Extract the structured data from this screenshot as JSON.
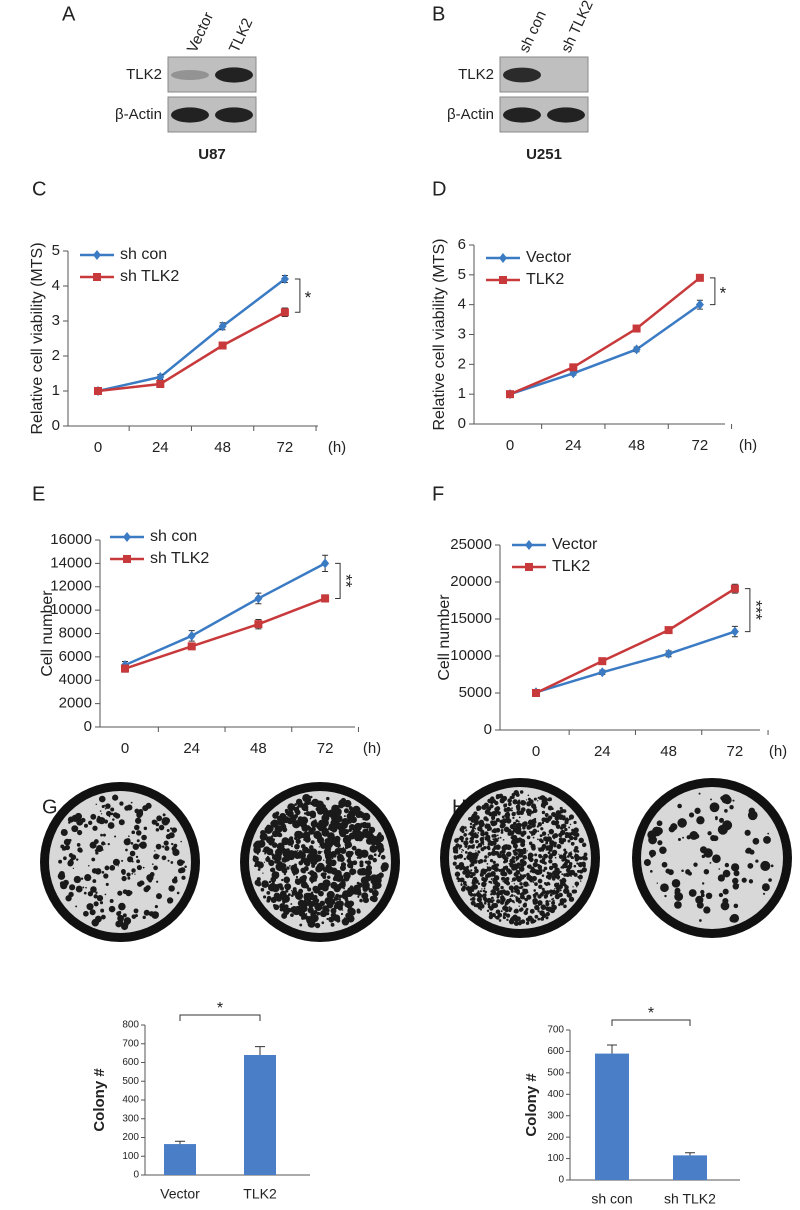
{
  "blots": [
    {
      "panel": "A",
      "lanes": [
        "Vector",
        "TLK2"
      ],
      "rows": [
        "TLK2",
        "β-Actin"
      ],
      "cell_line": "U87"
    },
    {
      "panel": "B",
      "lanes": [
        "sh con",
        "sh TLK2"
      ],
      "rows": [
        "TLK2",
        "β-Actin"
      ],
      "cell_line": "U251"
    }
  ],
  "chart_data": [
    {
      "type": "line",
      "panel": "C",
      "y_label": "Relative cell viability (MTS)",
      "x_unit": "(h)",
      "annotation": "*",
      "categories": [
        "0",
        "24",
        "48",
        "72"
      ],
      "ylim": [
        0,
        5
      ],
      "yticks": [
        0,
        1,
        2,
        3,
        4,
        5
      ],
      "series": [
        {
          "name": "sh con",
          "color": "#3b7bc4",
          "marker": "diamond",
          "values": [
            1,
            1.4,
            2.85,
            4.2
          ],
          "errors": [
            0.05,
            0.07,
            0.1,
            0.1
          ]
        },
        {
          "name": "sh TLK2",
          "color": "#c8393b",
          "marker": "square",
          "values": [
            1,
            1.2,
            2.3,
            3.25
          ],
          "errors": [
            0.05,
            0.05,
            0.06,
            0.12
          ]
        }
      ]
    },
    {
      "type": "line",
      "panel": "D",
      "y_label": "Relative cell viability (MTS)",
      "x_unit": "(h)",
      "annotation": "*",
      "categories": [
        "0",
        "24",
        "48",
        "72"
      ],
      "ylim": [
        0,
        6
      ],
      "yticks": [
        0,
        1,
        2,
        3,
        4,
        5,
        6
      ],
      "series": [
        {
          "name": "Vector",
          "color": "#3b7bc4",
          "marker": "diamond",
          "values": [
            1,
            1.7,
            2.5,
            4.0
          ],
          "errors": [
            0.05,
            0.06,
            0.08,
            0.15
          ]
        },
        {
          "name": "TLK2",
          "color": "#c8393b",
          "marker": "square",
          "values": [
            1,
            1.9,
            3.2,
            4.9
          ],
          "errors": [
            0.05,
            0.07,
            0.1,
            0.1
          ]
        }
      ]
    },
    {
      "type": "line",
      "panel": "E",
      "y_label": "Cell number",
      "x_unit": "(h)",
      "annotation": "**",
      "categories": [
        "0",
        "24",
        "48",
        "72"
      ],
      "ylim": [
        0,
        16000
      ],
      "yticks": [
        0,
        2000,
        4000,
        6000,
        8000,
        10000,
        12000,
        14000,
        16000
      ],
      "series": [
        {
          "name": "sh con",
          "color": "#3b7bc4",
          "marker": "diamond",
          "values": [
            5300,
            7800,
            11000,
            14000
          ],
          "errors": [
            300,
            450,
            450,
            700
          ]
        },
        {
          "name": "sh TLK2",
          "color": "#c8393b",
          "marker": "square",
          "values": [
            5000,
            6900,
            8800,
            11000
          ],
          "errors": [
            300,
            250,
            400,
            300
          ]
        }
      ]
    },
    {
      "type": "line",
      "panel": "F",
      "y_label": "Cell number",
      "x_unit": "(h)",
      "annotation": "***",
      "categories": [
        "0",
        "24",
        "48",
        "72"
      ],
      "ylim": [
        0,
        25000
      ],
      "yticks": [
        0,
        5000,
        10000,
        15000,
        20000,
        25000
      ],
      "series": [
        {
          "name": "Vector",
          "color": "#3b7bc4",
          "marker": "diamond",
          "values": [
            5100,
            7800,
            10300,
            13300
          ],
          "errors": [
            300,
            300,
            400,
            700
          ]
        },
        {
          "name": "TLK2",
          "color": "#c8393b",
          "marker": "square",
          "values": [
            5000,
            9300,
            13500,
            19100
          ],
          "errors": [
            300,
            400,
            400,
            600
          ]
        }
      ]
    },
    {
      "type": "bar",
      "panel": "G",
      "y_label": "Colony #",
      "annotation": "*",
      "color": "#4a7fc8",
      "categories": [
        "Vector",
        "TLK2"
      ],
      "values": [
        165,
        640
      ],
      "errors": [
        15,
        45
      ],
      "ylim": [
        0,
        800
      ],
      "yticks": [
        0,
        100,
        200,
        300,
        400,
        500,
        600,
        700,
        800
      ]
    },
    {
      "type": "bar",
      "panel": "H",
      "y_label": "Colony #",
      "annotation": "*",
      "color": "#4a7fc8",
      "categories": [
        "sh con",
        "sh TLK2"
      ],
      "values": [
        590,
        115
      ],
      "errors": [
        40,
        12
      ],
      "ylim": [
        0,
        700
      ],
      "yticks": [
        0,
        100,
        200,
        300,
        400,
        500,
        600,
        700
      ]
    }
  ]
}
